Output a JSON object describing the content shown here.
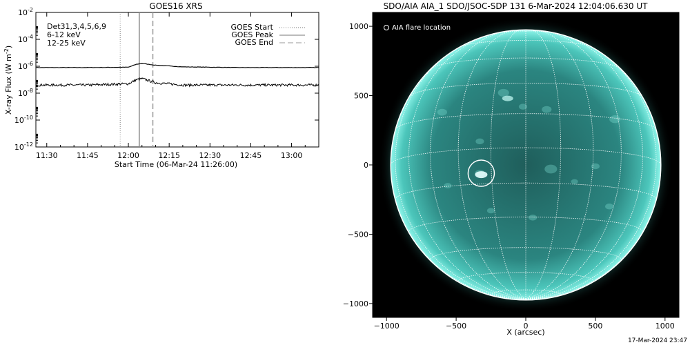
{
  "left_chart_title": "GOES16 XRS",
  "right_chart_title": "SDO/AIA AIA_1 SDO/JSOC-SDP 131  6-Mar-2024 12:04:06.630 UT",
  "footer_timestamp": "17-Mar-2024 23:47",
  "legend_left": {
    "dets_label": "Det31,3,4,5,6,9",
    "band1_label": "6-12 keV",
    "band2_label": "12-25 keV",
    "band1_color": "#d000d0",
    "band2_color": "#00cc00",
    "start_label": "GOES Start",
    "peak_label": "GOES Peak",
    "end_label": "GOES End"
  },
  "aia_legend_label": "AIA flare location",
  "colors": {
    "sun_core": "#2a7a76",
    "sun_edge": "#6ff0e4",
    "sun_bg": "#000000",
    "grid": "#ffffff"
  },
  "chart_data": [
    {
      "type": "line",
      "title": "GOES16 XRS",
      "xlabel": "Start Time (06-Mar-24 11:26:00)",
      "ylabel": "X-ray Flux (W m^-2)",
      "y_scale": "log",
      "ylim": [
        1e-12,
        0.01
      ],
      "xlim": [
        "11:26",
        "13:10"
      ],
      "x_ticks": [
        "11:30",
        "11:45",
        "12:00",
        "12:15",
        "12:30",
        "12:45",
        "13:00"
      ],
      "y_tick_exponents": [
        -12,
        -10,
        -8,
        -6,
        -4,
        -2
      ],
      "series": [
        {
          "name": "6-12 keV",
          "x": [
            "11:26",
            "11:45",
            "12:00",
            "12:03",
            "12:05",
            "12:10",
            "12:20",
            "12:40",
            "13:10"
          ],
          "y": [
            8e-07,
            8e-07,
            8.5e-07,
            1.4e-06,
            1.6e-06,
            1.2e-06,
            9e-07,
            8e-07,
            8e-07
          ]
        },
        {
          "name": "12-25 keV",
          "x": [
            "11:26",
            "11:45",
            "12:00",
            "12:03",
            "12:05",
            "12:10",
            "12:20",
            "12:40",
            "13:10"
          ],
          "y": [
            4e-08,
            4e-08,
            5e-08,
            1e-07,
            1.2e-07,
            6e-08,
            4e-08,
            4e-08,
            4e-08
          ]
        }
      ],
      "markers": {
        "goes_start": "11:57",
        "goes_peak": "12:04",
        "goes_end": "12:09"
      }
    },
    {
      "type": "scatter",
      "title": "SDO/AIA AIA_1 SDO/JSOC-SDP 131  6-Mar-2024 12:04:06.630 UT",
      "xlabel": "X (arcsec)",
      "ylabel": "",
      "xlim": [
        -1100,
        1100
      ],
      "ylim": [
        -1100,
        1100
      ],
      "x_ticks": [
        -1000,
        -500,
        0,
        500,
        1000
      ],
      "y_ticks": [
        -1000,
        -500,
        0,
        500,
        1000
      ],
      "solar_radius_arcsec": 970,
      "flare_location": {
        "x": -320,
        "y": -60
      }
    }
  ]
}
